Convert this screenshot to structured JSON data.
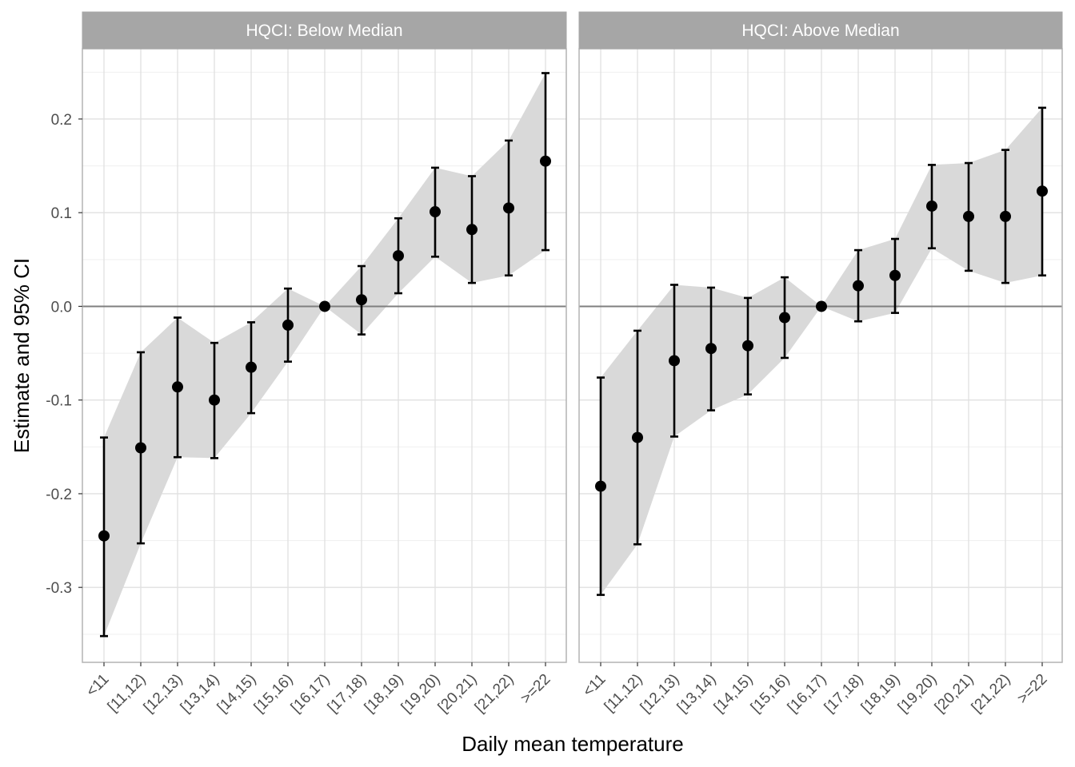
{
  "chart_data": {
    "type": "errorbar",
    "xlabel": "Daily mean temperature",
    "ylabel": "Estimate and 95% CI",
    "ylim": [
      -0.38,
      0.275
    ],
    "yticks": [
      -0.3,
      -0.2,
      -0.1,
      0.0,
      0.1,
      0.2
    ],
    "ytick_labels": [
      "-0.3",
      "-0.2",
      "-0.1",
      "0.0",
      "0.1",
      "0.2"
    ],
    "reference_line": 0.0,
    "grid": true,
    "categories": [
      "<11",
      "[11,12)",
      "[12,13)",
      "[13,14)",
      "[14,15)",
      "[15,16)",
      "[16,17)",
      "[17,18)",
      "[18,19)",
      "[19,20)",
      "[20,21)",
      "[21,22)",
      ">=22"
    ],
    "colors": {
      "band": "#d9d9d9",
      "point": "#000000",
      "strip": "#a6a6a6",
      "grid": "#e0e0e0",
      "zero_line": "#7f7f7f"
    },
    "panels": [
      {
        "strip_label": "HQCI: Below Median",
        "estimate": [
          -0.245,
          -0.151,
          -0.086,
          -0.1,
          -0.065,
          -0.02,
          0.0,
          0.007,
          0.054,
          0.101,
          0.082,
          0.105,
          0.155
        ],
        "lower": [
          -0.352,
          -0.253,
          -0.161,
          -0.162,
          -0.114,
          -0.059,
          0.0,
          -0.03,
          0.014,
          0.053,
          0.025,
          0.033,
          0.06
        ],
        "upper": [
          -0.14,
          -0.049,
          -0.012,
          -0.039,
          -0.017,
          0.019,
          0.0,
          0.043,
          0.094,
          0.148,
          0.139,
          0.177,
          0.249
        ]
      },
      {
        "strip_label": "HQCI: Above Median",
        "estimate": [
          -0.192,
          -0.14,
          -0.058,
          -0.045,
          -0.042,
          -0.012,
          0.0,
          0.022,
          0.033,
          0.107,
          0.096,
          0.096,
          0.123
        ],
        "lower": [
          -0.308,
          -0.254,
          -0.139,
          -0.111,
          -0.094,
          -0.055,
          0.0,
          -0.016,
          -0.007,
          0.062,
          0.038,
          0.025,
          0.033
        ],
        "upper": [
          -0.076,
          -0.026,
          0.023,
          0.02,
          0.009,
          0.031,
          0.0,
          0.06,
          0.072,
          0.151,
          0.153,
          0.167,
          0.212
        ]
      }
    ]
  }
}
